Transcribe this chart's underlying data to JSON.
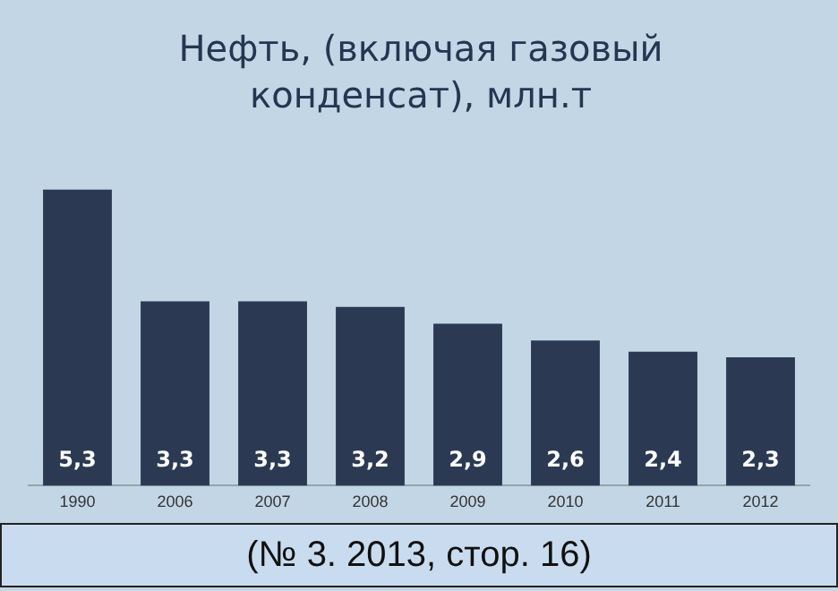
{
  "chart_data": {
    "type": "bar",
    "title": "Нефть, (включая газовый конденсат), млн.т",
    "categories": [
      "1990",
      "2006",
      "2007",
      "2008",
      "2009",
      "2010",
      "2011",
      "2012"
    ],
    "values": [
      5.3,
      3.3,
      3.3,
      3.2,
      2.9,
      2.6,
      2.4,
      2.3
    ],
    "value_labels": [
      "5,3",
      "3,3",
      "3,3",
      "3,2",
      "2,9",
      "2,6",
      "2,4",
      "2,3"
    ],
    "color": "#2b3a52",
    "grid": false,
    "legend": false,
    "annotations": [
      "(№ 3. 2013, стор. 16)"
    ]
  }
}
